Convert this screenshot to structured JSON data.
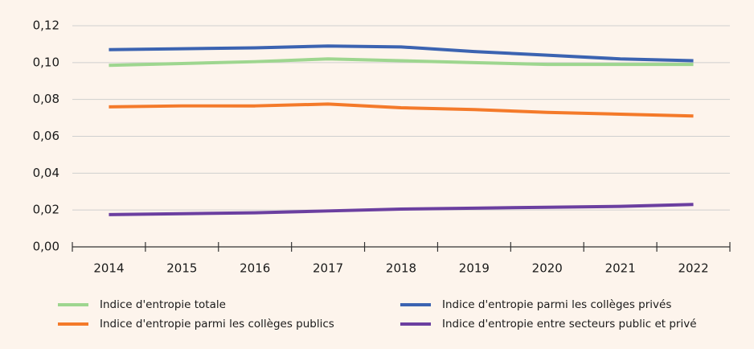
{
  "chart_data": {
    "type": "line",
    "categories": [
      "2014",
      "2015",
      "2016",
      "2017",
      "2018",
      "2019",
      "2020",
      "2021",
      "2022"
    ],
    "series": [
      {
        "name": "Indice d'entropie totale",
        "color": "#9ed68f",
        "values": [
          0.0985,
          0.0995,
          0.1005,
          0.102,
          0.101,
          0.1,
          0.099,
          0.099,
          0.099
        ]
      },
      {
        "name": "Indice d'entropie parmi les collèges privés",
        "color": "#3b63b1",
        "values": [
          0.107,
          0.1075,
          0.108,
          0.109,
          0.1085,
          0.106,
          0.104,
          0.102,
          0.101
        ]
      },
      {
        "name": "Indice d'entropie parmi les collèges publics",
        "color": "#f47a2a",
        "values": [
          0.076,
          0.0765,
          0.0765,
          0.0775,
          0.0755,
          0.0745,
          0.073,
          0.072,
          0.071
        ]
      },
      {
        "name": "Indice d'entropie entre secteurs public et privé",
        "color": "#6b3fa0",
        "values": [
          0.0175,
          0.018,
          0.0185,
          0.0195,
          0.0205,
          0.021,
          0.0215,
          0.022,
          0.023
        ]
      }
    ],
    "ylim": [
      0,
      0.12
    ],
    "yticks": [
      {
        "value": 0,
        "label": "0,00"
      },
      {
        "value": 0.02,
        "label": "0,02"
      },
      {
        "value": 0.04,
        "label": "0,04"
      },
      {
        "value": 0.06,
        "label": "0,06"
      },
      {
        "value": 0.08,
        "label": "0,08"
      },
      {
        "value": 0.1,
        "label": "0,10"
      },
      {
        "value": 0.12,
        "label": "0,12"
      }
    ],
    "grid": true
  }
}
